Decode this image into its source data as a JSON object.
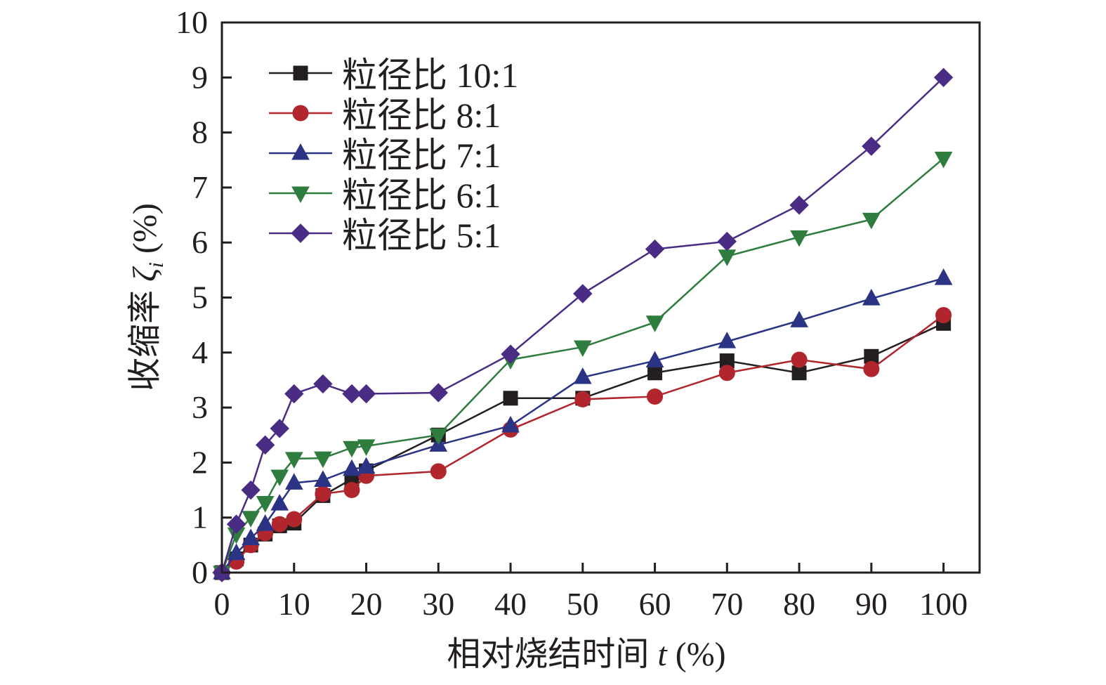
{
  "chart_data": {
    "type": "line",
    "title": "",
    "xlabel": "相对烧结时间",
    "xlabel_var": "t",
    "xlabel_unit": "(%)",
    "ylabel": "收缩率",
    "ylabel_var": "ζ",
    "ylabel_sub": "i",
    "ylabel_unit": "(%)",
    "xlim": [
      0,
      105
    ],
    "ylim": [
      0,
      10
    ],
    "xticks": [
      0,
      10,
      20,
      30,
      40,
      50,
      60,
      70,
      80,
      90,
      100
    ],
    "yticks": [
      0,
      1,
      2,
      3,
      4,
      5,
      6,
      7,
      8,
      9,
      10
    ],
    "grid": false,
    "legend_position": "top-left",
    "x": [
      0,
      2,
      4,
      6,
      8,
      10,
      14,
      18,
      20,
      30,
      40,
      50,
      60,
      70,
      80,
      90,
      100
    ],
    "series": [
      {
        "name": "粒径比 10:1",
        "color": "#231f20",
        "marker": "square",
        "values": [
          0,
          0.25,
          0.5,
          0.7,
          0.85,
          0.9,
          1.4,
          1.7,
          1.85,
          2.5,
          3.17,
          3.17,
          3.63,
          3.85,
          3.63,
          3.93,
          4.53
        ]
      },
      {
        "name": "粒径比 8:1",
        "color": "#b1262c",
        "marker": "circle",
        "values": [
          0,
          0.2,
          0.5,
          0.72,
          0.88,
          0.97,
          1.43,
          1.5,
          1.76,
          1.84,
          2.6,
          3.15,
          3.2,
          3.63,
          3.87,
          3.7,
          4.68
        ]
      },
      {
        "name": "粒径比 7:1",
        "color": "#2b3484",
        "marker": "triangle-up",
        "values": [
          0,
          0.35,
          0.62,
          0.88,
          1.25,
          1.63,
          1.68,
          1.88,
          1.92,
          2.32,
          2.67,
          3.55,
          3.85,
          4.2,
          4.58,
          4.98,
          5.35
        ]
      },
      {
        "name": "粒径比 6:1",
        "color": "#2e7d3e",
        "marker": "triangle-down",
        "values": [
          0,
          0.7,
          1.0,
          1.27,
          1.75,
          2.07,
          2.08,
          2.27,
          2.3,
          2.5,
          3.87,
          4.1,
          4.55,
          5.75,
          6.1,
          6.42,
          7.53
        ]
      },
      {
        "name": "粒径比 5:1",
        "color": "#4b2c85",
        "marker": "diamond",
        "values": [
          0,
          0.88,
          1.5,
          2.32,
          2.62,
          3.25,
          3.43,
          3.25,
          3.25,
          3.27,
          3.97,
          5.07,
          5.88,
          6.02,
          6.68,
          7.75,
          9.0
        ]
      }
    ]
  }
}
